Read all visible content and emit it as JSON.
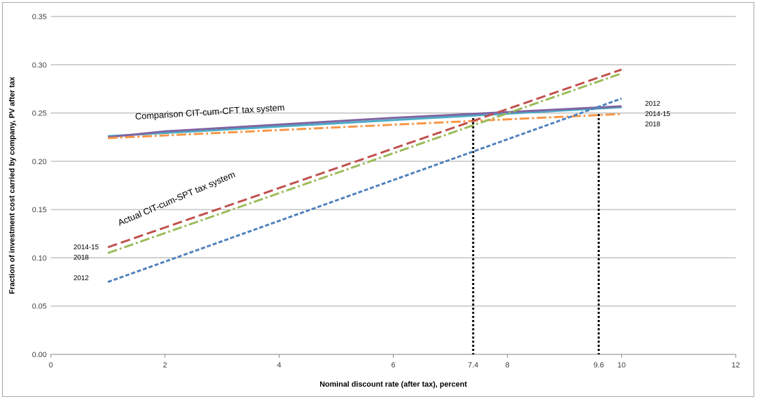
{
  "chart_data": {
    "type": "line",
    "xlabel": "Nominal discount rate (after tax), percent",
    "ylabel": "Fraction of investment cost carried by company, PV after tax",
    "xlim": [
      0,
      12
    ],
    "ylim": [
      0,
      0.35
    ],
    "x_ticks": [
      "0",
      "2",
      "4",
      "6",
      "8",
      "10",
      "12"
    ],
    "y_ticks": [
      "0.00",
      "0.05",
      "0.10",
      "0.15",
      "0.20",
      "0.25",
      "0.30",
      "0.35"
    ],
    "grid": "horizontal",
    "series": [
      {
        "name": "2012",
        "system": "Comparison CIT-cum-CFT",
        "color": "#4bacc6",
        "style": "solid",
        "x": [
          1,
          10
        ],
        "y": [
          0.226,
          0.256
        ]
      },
      {
        "name": "2014-15",
        "system": "Comparison CIT-cum-CFT",
        "color": "#8064a2",
        "style": "solid",
        "x": [
          1,
          2,
          4,
          6,
          8,
          10
        ],
        "y": [
          0.225,
          0.231,
          0.238,
          0.245,
          0.251,
          0.257
        ]
      },
      {
        "name": "2018",
        "system": "Comparison CIT-cum-CFT",
        "color": "#f79646",
        "style": "dashdot",
        "x": [
          1,
          10
        ],
        "y": [
          0.224,
          0.249
        ]
      },
      {
        "name": "2012",
        "system": "Actual CIT-cum-SPT",
        "color": "#4f81bd",
        "style": "dash",
        "x": [
          1,
          10
        ],
        "y": [
          0.075,
          0.265
        ]
      },
      {
        "name": "2014-15",
        "system": "Actual CIT-cum-SPT",
        "color": "#c0504d",
        "style": "longdash",
        "x": [
          1,
          10
        ],
        "y": [
          0.111,
          0.295
        ]
      },
      {
        "name": "2018",
        "system": "Actual CIT-cum-SPT",
        "color": "#9bbb59",
        "style": "dashdot",
        "x": [
          1,
          10
        ],
        "y": [
          0.105,
          0.291
        ]
      }
    ],
    "vlines": [
      {
        "x": 7.4,
        "label": "7.4"
      },
      {
        "x": 9.6,
        "label": "9.6"
      }
    ],
    "annotations": [
      {
        "text": "Comparison CIT-cum-CFT tax system"
      },
      {
        "text": "Actual CIT-cum-SPT tax system"
      }
    ],
    "left_labels": [
      "2014-15",
      "2018",
      "2012"
    ],
    "right_labels": [
      "2012",
      "2014-15",
      "2018"
    ]
  }
}
